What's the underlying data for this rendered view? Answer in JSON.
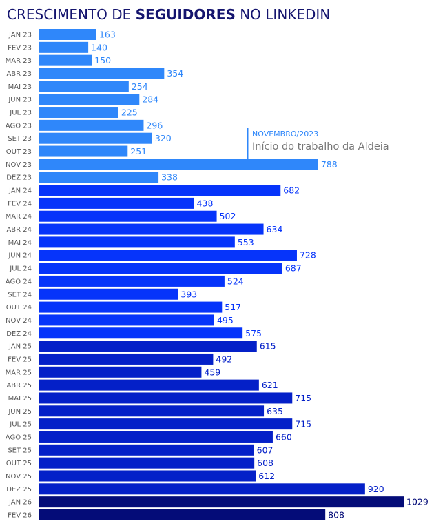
{
  "chart_data": {
    "type": "bar",
    "orientation": "horizontal",
    "title_parts": [
      "CRESCIMENTO DE ",
      "SEGUIDORES",
      " NO LINKEDIN"
    ],
    "categories": [
      "JAN 23",
      "FEV 23",
      "MAR 23",
      "ABR 23",
      "MAI 23",
      "JUN 23",
      "JUL 23",
      "AGO 23",
      "SET 23",
      "OUT 23",
      "NOV 23",
      "DEZ 23",
      "JAN 24",
      "FEV 24",
      "MAR 24",
      "ABR 24",
      "MAI 24",
      "JUN 24",
      "JUL 24",
      "AGO 24",
      "SET 24",
      "OUT 24",
      "NOV 24",
      "DEZ 24",
      "JAN 25",
      "FEV 25",
      "MAR 25",
      "ABR 25",
      "MAI 25",
      "JUN 25",
      "JUL 25",
      "AGO 25",
      "SET 25",
      "OUT 25",
      "NOV 25",
      "DEZ 25",
      "JAN 26",
      "FEV 26"
    ],
    "values": [
      163,
      140,
      150,
      354,
      254,
      284,
      225,
      296,
      320,
      251,
      788,
      338,
      682,
      438,
      502,
      634,
      553,
      728,
      687,
      524,
      393,
      517,
      495,
      575,
      615,
      492,
      459,
      621,
      715,
      635,
      715,
      660,
      607,
      608,
      612,
      920,
      1029,
      808
    ],
    "xlim": [
      0,
      1029
    ],
    "grid": false,
    "year_colors": {
      "23": "#2f87fa",
      "24": "#0634fa",
      "25": "#0420c8",
      "26": "#040c78"
    },
    "annotation": {
      "category": "NOV 23",
      "heading": "NOVEMBRO/2023",
      "text": "Início do trabalho da Aldeia"
    }
  },
  "colors": {
    "title": "#14146e",
    "label": "#555555",
    "annotation_text": "#777777"
  }
}
